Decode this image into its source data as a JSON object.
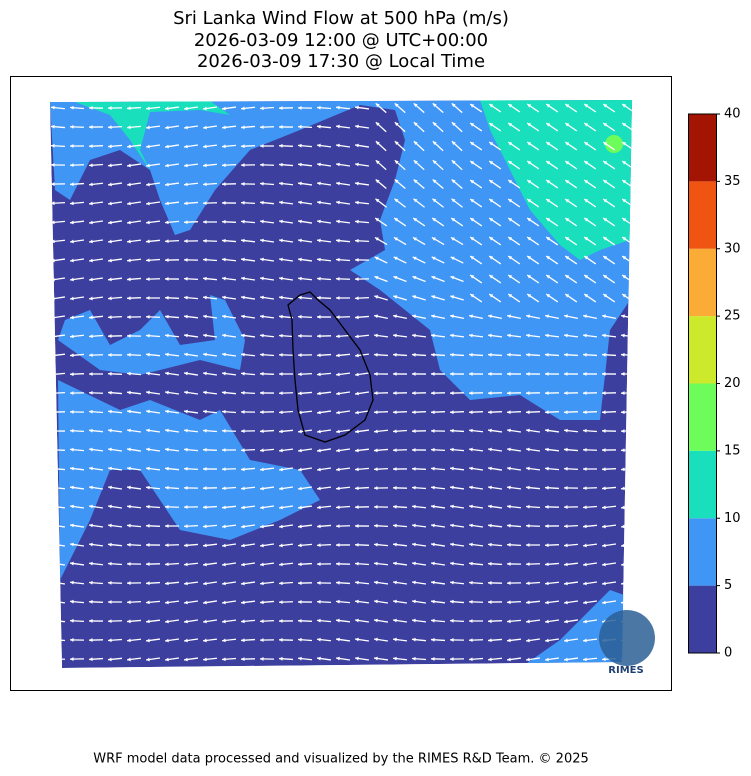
{
  "title_lines": [
    "Sri Lanka Wind Flow at 500 hPa (m/s)",
    "2026-03-09 12:00 @ UTC+00:00",
    "2026-03-09 17:30 @ Local Time"
  ],
  "colorbar": {
    "ticks": [
      0,
      5,
      10,
      15,
      20,
      25,
      30,
      35,
      40
    ],
    "colors": [
      "#3d3f9e",
      "#4096f5",
      "#19dfbd",
      "#6efc5a",
      "#cde92c",
      "#fbac36",
      "#ef5413",
      "#a31502"
    ]
  },
  "logo": {
    "text": "RIMES"
  },
  "footer": "WRF model data processed and visualized by the RIMES R&D Team. © 2025"
}
